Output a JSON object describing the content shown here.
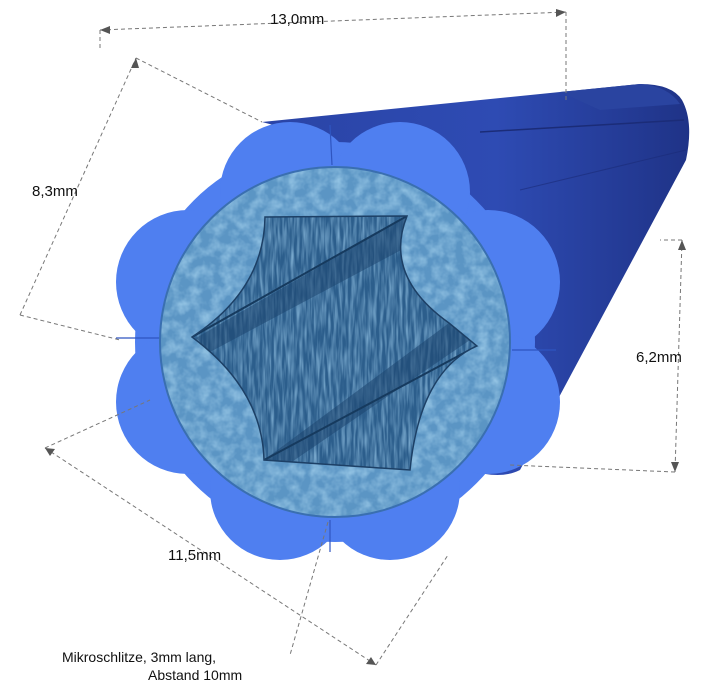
{
  "dimensions": {
    "top_width": "13,0mm",
    "left_diag": "8,3mm",
    "right_height": "6,2mm",
    "bottom_diag": "11,5mm"
  },
  "annotation": {
    "line1": "Mikroschlitze, 3mm lang,",
    "line2": "Abstand 10mm"
  },
  "colors": {
    "outer_ring": "#4f7ff0",
    "tube_body": "#2c45a8",
    "tube_dark": "#1f3387",
    "foam": "#3f82b4",
    "channel": "#2a6090",
    "dim_line": "#777777"
  }
}
